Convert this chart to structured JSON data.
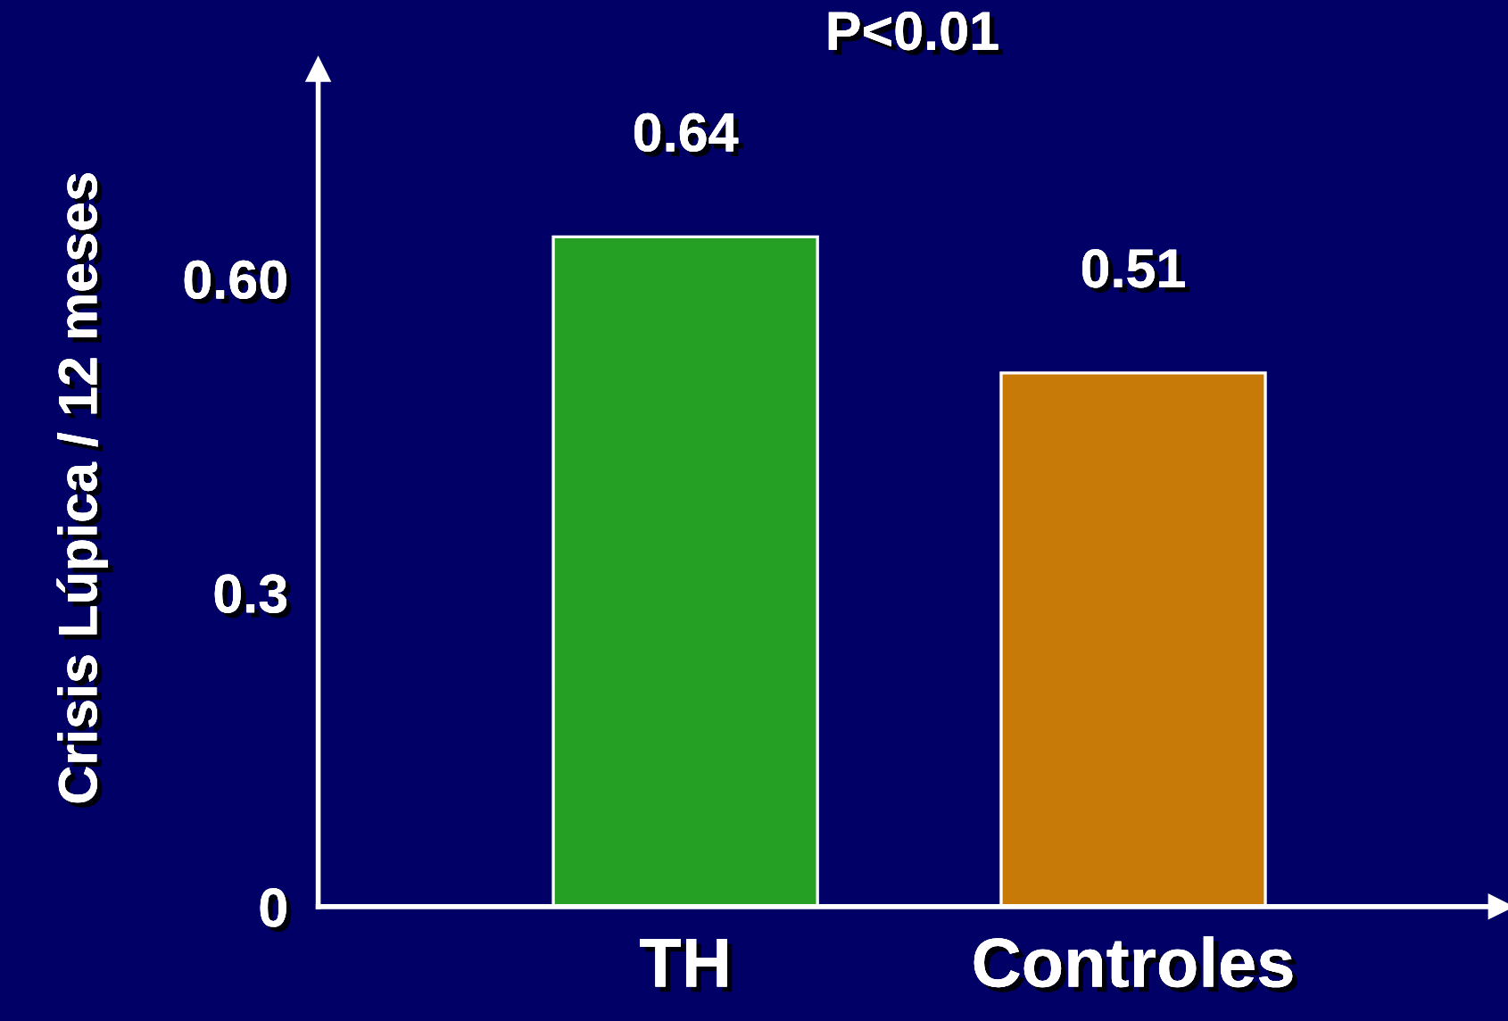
{
  "chart_data": {
    "type": "bar",
    "annotations": [
      "P<0.01"
    ],
    "ylabel": "Crisis Lúpica / 12 meses",
    "categories": [
      "TH",
      "Controles"
    ],
    "values": [
      0.64,
      0.51
    ],
    "colors": [
      "#25a025",
      "#c87a08"
    ],
    "data_labels": true,
    "ylim": [
      0,
      0.8
    ],
    "yticks": [
      0,
      0.3,
      {
        "value": 0.6,
        "label": "0.60"
      }
    ],
    "grid": false,
    "legend": false
  }
}
